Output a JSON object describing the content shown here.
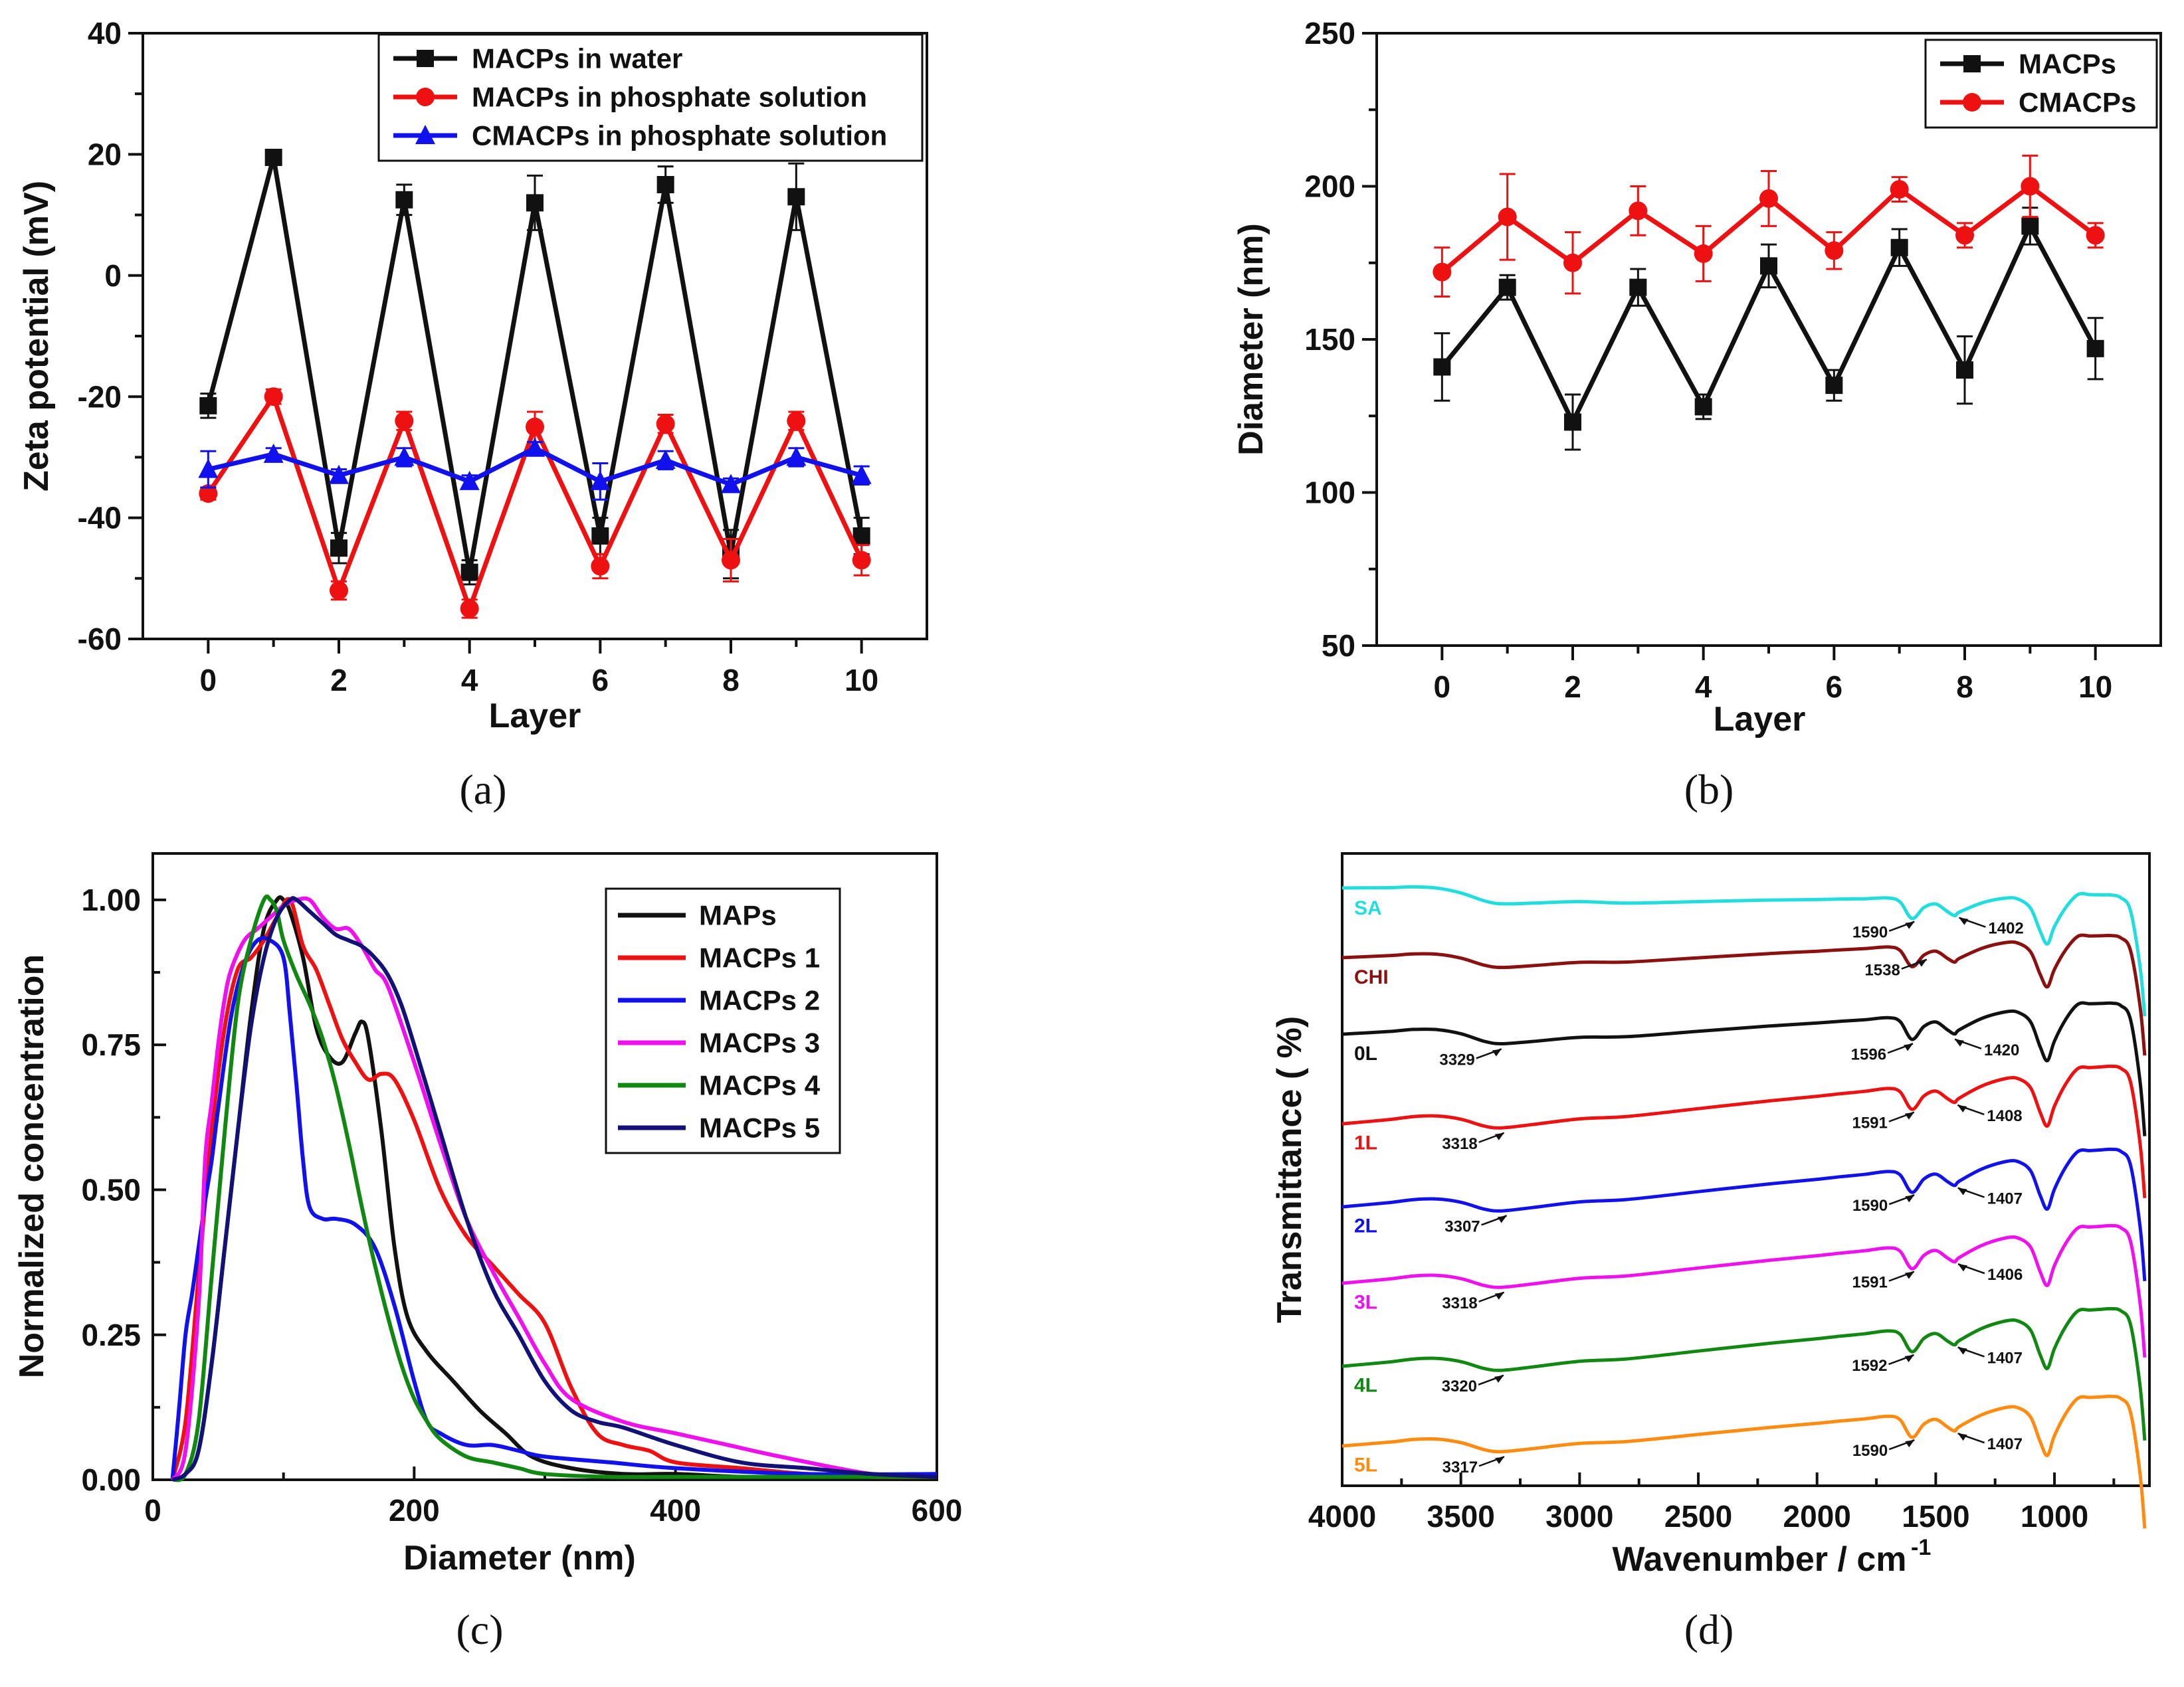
{
  "colors": {
    "black": "#111111",
    "red": "#ee1111",
    "blue": "#1111ee",
    "magenta": "#ee11ee",
    "green": "#118811",
    "navy": "#111177",
    "cyan": "#22dddd",
    "darkred": "#8b1111",
    "orange": "#ff8c11"
  },
  "chart_data": [
    {
      "id": "a",
      "type": "line",
      "caption": "(a)",
      "title": "",
      "xlabel": "Layer",
      "ylabel": "Zeta potential (mV)",
      "xlim": [
        -1,
        11
      ],
      "ylim": [
        -60,
        40
      ],
      "xticks": [
        "0",
        "2",
        "4",
        "6",
        "8",
        "10"
      ],
      "yticks": [
        "-60",
        "-40",
        "-20",
        "0",
        "20",
        "40"
      ],
      "legend_position": "top-right",
      "x": [
        0,
        1,
        2,
        3,
        4,
        5,
        6,
        7,
        8,
        9,
        10
      ],
      "series": [
        {
          "name": "MACPs in water",
          "color": "#111111",
          "marker": "square",
          "values": [
            -21.5,
            19.5,
            -45,
            12.5,
            -49,
            12,
            -43,
            15,
            -46,
            13,
            -43
          ],
          "errors": [
            2,
            1.2,
            2.5,
            2.5,
            2,
            4.5,
            3,
            3,
            4,
            5.5,
            3
          ]
        },
        {
          "name": "MACPs in phosphate solution",
          "color": "#ee1111",
          "marker": "circle",
          "values": [
            -36,
            -20,
            -52,
            -24,
            -55,
            -25,
            -48,
            -24.5,
            -47,
            -24,
            -47
          ],
          "errors": [
            1,
            1.2,
            1.5,
            1.5,
            1.5,
            2.5,
            2,
            1.5,
            3.5,
            1.5,
            2.5
          ]
        },
        {
          "name": "CMACPs in phosphate solution",
          "color": "#1111ee",
          "marker": "triangle",
          "values": [
            -32,
            -29.5,
            -33,
            -30,
            -34,
            -28.5,
            -34,
            -30.5,
            -34.5,
            -30,
            -33
          ],
          "errors": [
            3,
            1,
            1,
            1.5,
            1,
            1,
            3,
            1.5,
            1,
            1.5,
            1.5
          ]
        }
      ]
    },
    {
      "id": "b",
      "type": "line",
      "caption": "(b)",
      "title": "",
      "xlabel": "Layer",
      "ylabel": "Diameter (nm)",
      "xlim": [
        -1,
        11
      ],
      "ylim": [
        50,
        250
      ],
      "xticks": [
        "0",
        "2",
        "4",
        "6",
        "8",
        "10"
      ],
      "yticks": [
        "50",
        "100",
        "150",
        "200",
        "250"
      ],
      "legend_position": "top-right",
      "x": [
        0,
        1,
        2,
        3,
        4,
        5,
        6,
        7,
        8,
        9,
        10
      ],
      "series": [
        {
          "name": "MACPs",
          "color": "#111111",
          "marker": "square",
          "values": [
            141,
            167,
            123,
            167,
            128,
            174,
            135,
            180,
            140,
            187,
            147
          ],
          "errors": [
            11,
            4,
            9,
            6,
            4,
            7,
            5,
            6,
            11,
            6,
            10
          ]
        },
        {
          "name": "CMACPs",
          "color": "#ee1111",
          "marker": "circle",
          "values": [
            172,
            190,
            175,
            192,
            178,
            196,
            179,
            199,
            184,
            200,
            184
          ],
          "errors": [
            8,
            14,
            10,
            8,
            9,
            9,
            6,
            4,
            4,
            10,
            4
          ]
        }
      ]
    },
    {
      "id": "c",
      "type": "line",
      "caption": "(c)",
      "title": "",
      "xlabel": "Diameter (nm)",
      "ylabel": "Normalized concentration",
      "xlim": [
        0,
        600
      ],
      "ylim": [
        0,
        1.08
      ],
      "xticks": [
        "0",
        "200",
        "400",
        "600"
      ],
      "xtick_values": [
        0,
        200,
        400,
        600
      ],
      "yticks": [
        "0.00",
        "0.25",
        "0.50",
        "0.75",
        "1.00"
      ],
      "ytick_values": [
        0,
        0.25,
        0.5,
        0.75,
        1.0
      ],
      "legend_position": "top-right",
      "series": [
        {
          "name": "MAPs",
          "color": "#111111",
          "x": [
            15,
            25,
            35,
            45,
            55,
            65,
            75,
            85,
            95,
            100,
            105,
            115,
            125,
            135,
            145,
            155,
            160,
            165,
            175,
            185,
            195,
            210,
            230,
            250,
            270,
            290,
            320,
            360,
            400,
            450,
            500,
            550,
            600
          ],
          "values": [
            0,
            0.01,
            0.05,
            0.2,
            0.4,
            0.6,
            0.8,
            0.95,
            1.0,
            1.0,
            0.98,
            0.9,
            0.78,
            0.73,
            0.72,
            0.77,
            0.79,
            0.76,
            0.6,
            0.4,
            0.28,
            0.22,
            0.17,
            0.12,
            0.08,
            0.04,
            0.02,
            0.01,
            0.01,
            0.005,
            0.005,
            0.005,
            0.005
          ]
        },
        {
          "name": "MACPs 1",
          "color": "#ee1111",
          "x": [
            15,
            25,
            35,
            45,
            55,
            65,
            75,
            85,
            95,
            105,
            115,
            125,
            135,
            145,
            155,
            165,
            175,
            185,
            200,
            220,
            240,
            260,
            280,
            300,
            320,
            340,
            360,
            380,
            400,
            450,
            500,
            550,
            600
          ],
          "values": [
            0,
            0.1,
            0.35,
            0.6,
            0.78,
            0.88,
            0.9,
            0.93,
            0.97,
            1.0,
            0.92,
            0.88,
            0.82,
            0.76,
            0.72,
            0.69,
            0.7,
            0.69,
            0.62,
            0.5,
            0.42,
            0.37,
            0.32,
            0.27,
            0.16,
            0.08,
            0.06,
            0.05,
            0.03,
            0.02,
            0.01,
            0.005,
            0.005
          ]
        },
        {
          "name": "MACPs 2",
          "color": "#1111ee",
          "x": [
            15,
            20,
            25,
            30,
            35,
            40,
            45,
            50,
            60,
            70,
            80,
            90,
            100,
            105,
            110,
            115,
            120,
            130,
            140,
            155,
            170,
            185,
            200,
            210,
            220,
            240,
            260,
            280,
            300,
            350,
            400,
            500,
            600
          ],
          "values": [
            0,
            0.12,
            0.25,
            0.32,
            0.4,
            0.48,
            0.55,
            0.64,
            0.8,
            0.89,
            0.93,
            0.93,
            0.9,
            0.8,
            0.68,
            0.55,
            0.47,
            0.45,
            0.45,
            0.44,
            0.4,
            0.3,
            0.17,
            0.1,
            0.08,
            0.06,
            0.06,
            0.05,
            0.04,
            0.03,
            0.02,
            0.01,
            0.01
          ]
        },
        {
          "name": "MACPs 3",
          "color": "#ee11ee",
          "x": [
            15,
            25,
            35,
            40,
            45,
            50,
            55,
            60,
            70,
            80,
            90,
            100,
            110,
            120,
            130,
            140,
            150,
            160,
            170,
            180,
            200,
            220,
            240,
            260,
            280,
            300,
            320,
            360,
            400,
            440,
            480,
            550,
            600
          ],
          "values": [
            0,
            0.05,
            0.3,
            0.55,
            0.65,
            0.75,
            0.83,
            0.88,
            0.93,
            0.95,
            0.97,
            0.99,
            1.0,
            1.0,
            0.97,
            0.95,
            0.95,
            0.92,
            0.88,
            0.85,
            0.72,
            0.58,
            0.45,
            0.36,
            0.28,
            0.2,
            0.14,
            0.1,
            0.08,
            0.06,
            0.04,
            0.01,
            0.005
          ]
        },
        {
          "name": "MACPs 4",
          "color": "#118811",
          "x": [
            15,
            25,
            35,
            45,
            55,
            65,
            75,
            85,
            90,
            95,
            100,
            110,
            120,
            130,
            140,
            150,
            160,
            170,
            180,
            190,
            200,
            210,
            220,
            240,
            260,
            280,
            300,
            350,
            400,
            450,
            500,
            550,
            600
          ],
          "values": [
            0,
            0.01,
            0.1,
            0.35,
            0.6,
            0.82,
            0.93,
            1.0,
            1.0,
            0.98,
            0.93,
            0.87,
            0.82,
            0.76,
            0.68,
            0.58,
            0.47,
            0.37,
            0.28,
            0.2,
            0.14,
            0.1,
            0.07,
            0.04,
            0.03,
            0.02,
            0.01,
            0.005,
            0.005,
            0.005,
            0.005,
            0.005,
            0.005
          ]
        },
        {
          "name": "MACPs 5",
          "color": "#111177",
          "x": [
            15,
            25,
            35,
            45,
            55,
            65,
            75,
            85,
            95,
            105,
            110,
            120,
            130,
            140,
            150,
            160,
            170,
            180,
            190,
            200,
            220,
            240,
            260,
            280,
            300,
            320,
            340,
            360,
            400,
            450,
            500,
            550,
            600
          ],
          "values": [
            0,
            0.01,
            0.05,
            0.2,
            0.4,
            0.6,
            0.78,
            0.9,
            0.97,
            1.0,
            1.0,
            0.98,
            0.96,
            0.94,
            0.93,
            0.92,
            0.9,
            0.87,
            0.82,
            0.75,
            0.6,
            0.45,
            0.33,
            0.25,
            0.17,
            0.12,
            0.1,
            0.09,
            0.06,
            0.03,
            0.02,
            0.01,
            0.005
          ]
        }
      ]
    },
    {
      "id": "d",
      "type": "line",
      "caption": "(d)",
      "title": "",
      "xlabel": "Wavenumber / cm",
      "xlabel_superscript": "-1",
      "ylabel": "Transmittance ( %)",
      "xlim": [
        4000,
        600
      ],
      "xticks": [
        "4000",
        "3500",
        "3000",
        "2500",
        "2000",
        "1500",
        "1000"
      ],
      "xtick_values": [
        4000,
        3500,
        3000,
        2500,
        2000,
        1500,
        1000
      ],
      "yticks": [],
      "x": [
        4000,
        3800,
        3700,
        3600,
        3500,
        3400,
        3329,
        3200,
        3000,
        2800,
        2500,
        2200,
        2000,
        1900,
        1800,
        1700,
        1650,
        1600,
        1550,
        1500,
        1450,
        1420,
        1400,
        1300,
        1200,
        1150,
        1100,
        1060,
        1030,
        1000,
        950,
        900,
        850,
        800,
        760,
        720,
        680,
        640,
        620
      ],
      "shape": [
        0.05,
        0.0,
        -0.05,
        -0.02,
        0.15,
        0.45,
        0.55,
        0.5,
        0.4,
        0.42,
        0.3,
        0.18,
        0.12,
        0.08,
        0.05,
        0.0,
        0.15,
        0.8,
        0.35,
        0.2,
        0.5,
        0.65,
        0.5,
        0.1,
        -0.1,
        -0.05,
        0.3,
        1.2,
        1.7,
        1.0,
        0.2,
        -0.3,
        -0.3,
        -0.3,
        -0.3,
        -0.2,
        0.3,
        2.5,
        4.5
      ],
      "series": [
        {
          "name": "SA",
          "color": "#22dddd",
          "offset": 0.0,
          "amp": 0.9,
          "tilt": -0.6,
          "peaks": [
            {
              "label": "1590",
              "wn": 1590,
              "side": "left"
            },
            {
              "label": "1402",
              "wn": 1402,
              "side": "right"
            }
          ]
        },
        {
          "name": "CHI",
          "color": "#8b1111",
          "offset": 1.0,
          "amp": 0.9,
          "tilt": 0.5,
          "peaks": [
            {
              "label": "1538",
              "wn": 1538,
              "side": "left"
            }
          ]
        },
        {
          "name": "0L",
          "color": "#111111",
          "offset": 2.0,
          "amp": 1.0,
          "tilt": 0.8,
          "peaks": [
            {
              "label": "3329",
              "wn": 3329,
              "side": "left"
            },
            {
              "label": "1596",
              "wn": 1596,
              "side": "left"
            },
            {
              "label": "1420",
              "wn": 1420,
              "side": "right"
            }
          ]
        },
        {
          "name": "1L",
          "color": "#ee1111",
          "offset": 3.0,
          "amp": 1.0,
          "tilt": 1.8,
          "peaks": [
            {
              "label": "3318",
              "wn": 3318,
              "side": "left"
            },
            {
              "label": "1591",
              "wn": 1591,
              "side": "left"
            },
            {
              "label": "1408",
              "wn": 1408,
              "side": "right"
            }
          ]
        },
        {
          "name": "2L",
          "color": "#1111ee",
          "offset": 4.0,
          "amp": 1.0,
          "tilt": 1.8,
          "peaks": [
            {
              "label": "3307",
              "wn": 3307,
              "side": "left"
            },
            {
              "label": "1590",
              "wn": 1590,
              "side": "left"
            },
            {
              "label": "1407",
              "wn": 1407,
              "side": "right"
            }
          ]
        },
        {
          "name": "3L",
          "color": "#ee11ee",
          "offset": 5.0,
          "amp": 1.0,
          "tilt": 1.8,
          "peaks": [
            {
              "label": "3318",
              "wn": 3318,
              "side": "left"
            },
            {
              "label": "1591",
              "wn": 1591,
              "side": "left"
            },
            {
              "label": "1406",
              "wn": 1406,
              "side": "right"
            }
          ]
        },
        {
          "name": "4L",
          "color": "#118811",
          "offset": 6.0,
          "amp": 1.0,
          "tilt": 1.8,
          "peaks": [
            {
              "label": "3320",
              "wn": 3320,
              "side": "left"
            },
            {
              "label": "1592",
              "wn": 1592,
              "side": "left"
            },
            {
              "label": "1407",
              "wn": 1407,
              "side": "right"
            }
          ]
        },
        {
          "name": "5L",
          "color": "#ff8c11",
          "offset": 7.0,
          "amp": 1.0,
          "tilt": 1.5,
          "peaks": [
            {
              "label": "3317",
              "wn": 3317,
              "side": "left"
            },
            {
              "label": "1590",
              "wn": 1590,
              "side": "left"
            },
            {
              "label": "1407",
              "wn": 1407,
              "side": "right"
            }
          ]
        }
      ]
    }
  ]
}
